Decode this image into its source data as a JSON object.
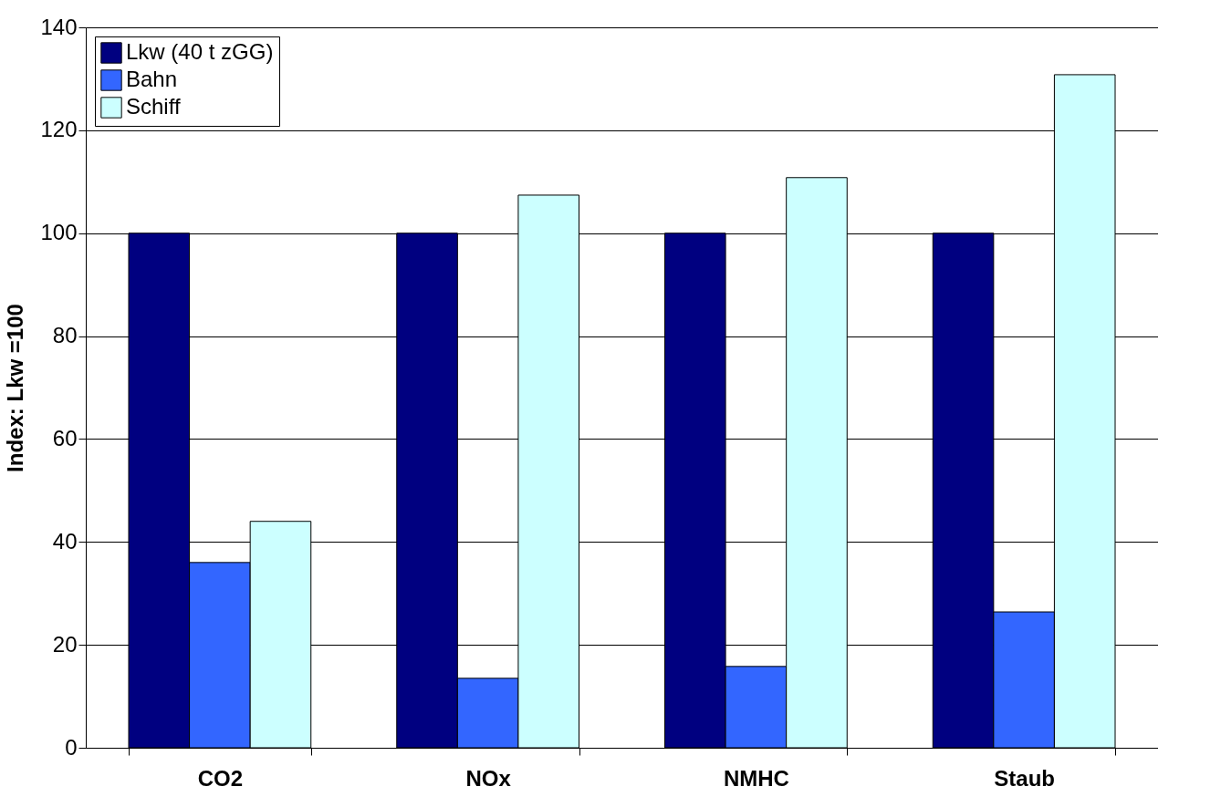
{
  "chart_data": {
    "type": "bar",
    "ylabel": "Index: Lkw =100",
    "categories": [
      "CO2",
      "NOx",
      "NMHC",
      "Staub"
    ],
    "series": [
      {
        "name": "Lkw (40 t zGG)",
        "color": "#000080",
        "values": [
          100,
          100,
          100,
          100
        ]
      },
      {
        "name": "Bahn",
        "color": "#3366ff",
        "values": [
          36,
          13.5,
          15.8,
          26.4
        ]
      },
      {
        "name": "Schiff",
        "color": "#ccffff",
        "values": [
          44,
          107.4,
          110.8,
          130.8
        ]
      }
    ],
    "ylim": [
      0,
      140
    ],
    "yticks": [
      0,
      20,
      40,
      60,
      80,
      100,
      120,
      140
    ],
    "grid": "y",
    "legend": "top left"
  }
}
